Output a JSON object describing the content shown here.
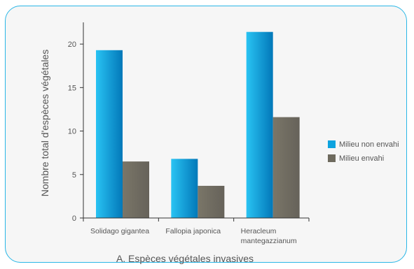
{
  "chart_data": {
    "type": "bar",
    "categories": [
      [
        "Solidago gigantea"
      ],
      [
        "Fallopia japonica"
      ],
      [
        "Heracleum",
        "mantegazzianum"
      ]
    ],
    "series": [
      {
        "name": "Milieu non envahi",
        "values": [
          19.3,
          6.8,
          21.4
        ]
      },
      {
        "name": "Milieu envahi",
        "values": [
          6.5,
          3.7,
          11.6
        ]
      }
    ],
    "xlabel": "A. Espèces végétales invasives",
    "ylabel": "Nombre total d'espèces végétales",
    "ylim": [
      0,
      22.5
    ],
    "yticks": [
      0,
      5,
      10,
      15,
      20
    ],
    "legend_position": "right",
    "grid": false,
    "colors": {
      "Milieu non envahi": "#0da3df",
      "Milieu envahi": "#6e6a5e"
    }
  }
}
